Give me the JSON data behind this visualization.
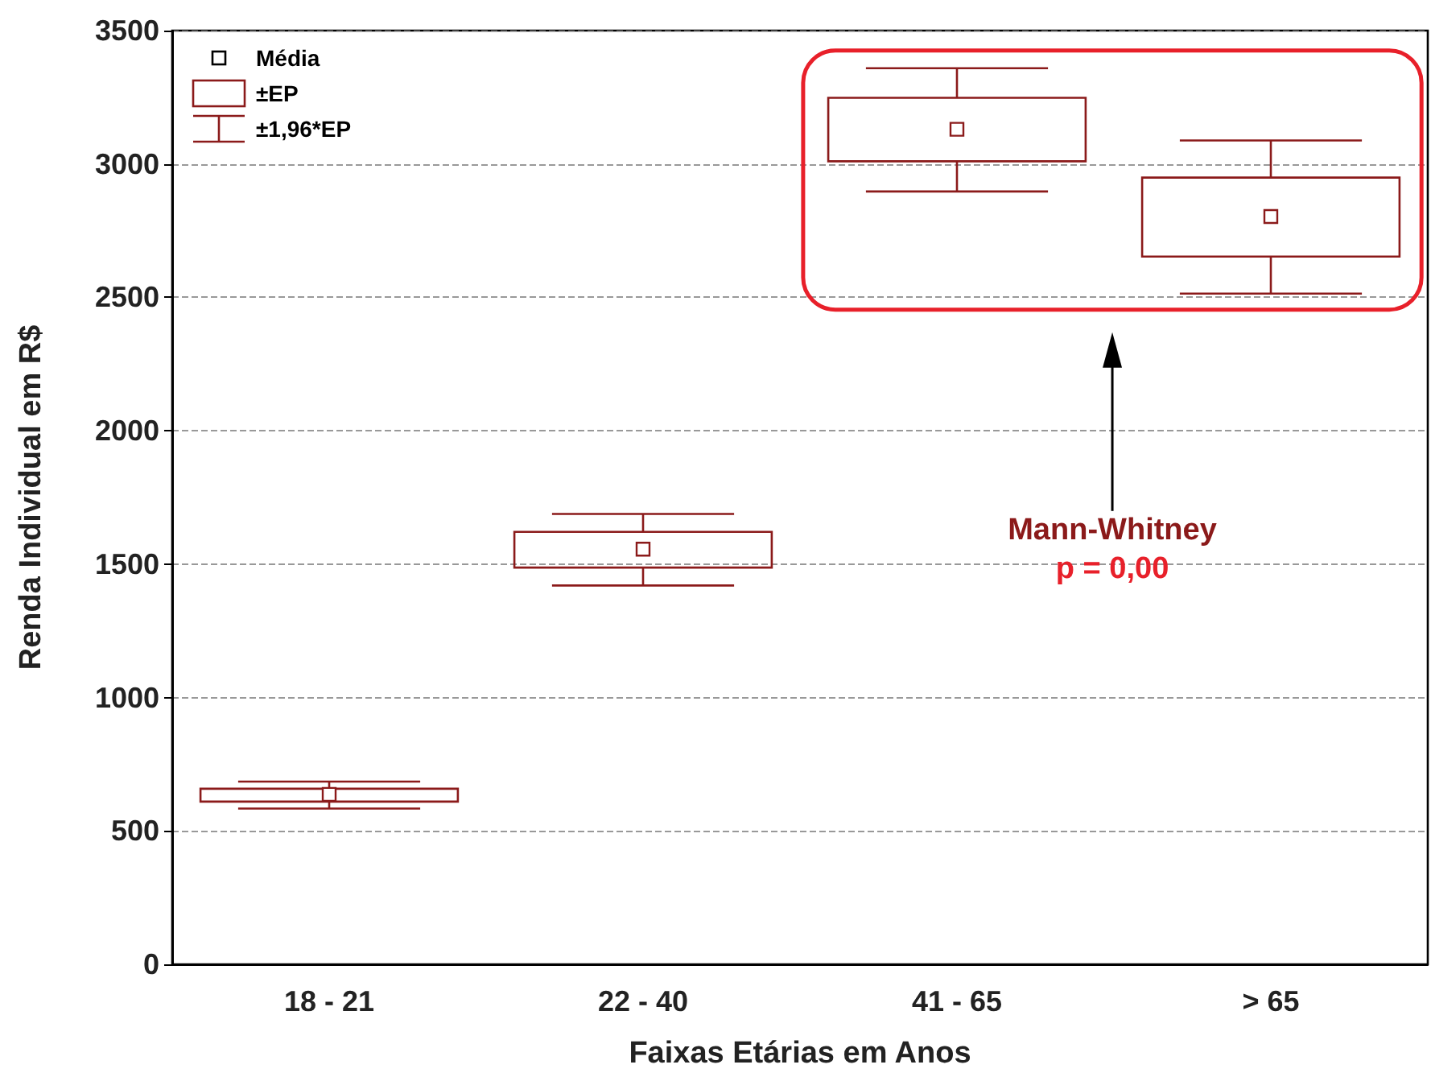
{
  "chart_data": {
    "type": "box",
    "xlabel": "Faixas Etárias em Anos",
    "ylabel": "Renda Individual em R$",
    "categories": [
      "18 - 21",
      "22 - 40",
      "41 - 65",
      "> 65"
    ],
    "boxes": [
      {
        "low": 584,
        "q1": 610,
        "q3": 658,
        "high": 685,
        "mean": 637
      },
      {
        "low": 1420,
        "q1": 1487,
        "q3": 1621,
        "high": 1688,
        "mean": 1556
      },
      {
        "low": 2897,
        "q1": 3010,
        "q3": 3248,
        "high": 3359,
        "mean": 3130
      },
      {
        "low": 2514,
        "q1": 2653,
        "q3": 2949,
        "high": 3088,
        "mean": 2803
      }
    ],
    "color": "#8b1a1a",
    "marker": "square",
    "ylim": [
      0,
      3500
    ],
    "yticks": [
      0,
      500,
      1000,
      1500,
      2000,
      2500,
      3000,
      3500
    ],
    "grid": "y",
    "annotations": [
      "Média",
      "±EP",
      "±1,96*EP",
      "Mann-Whitney",
      "p = 0,00"
    ]
  }
}
